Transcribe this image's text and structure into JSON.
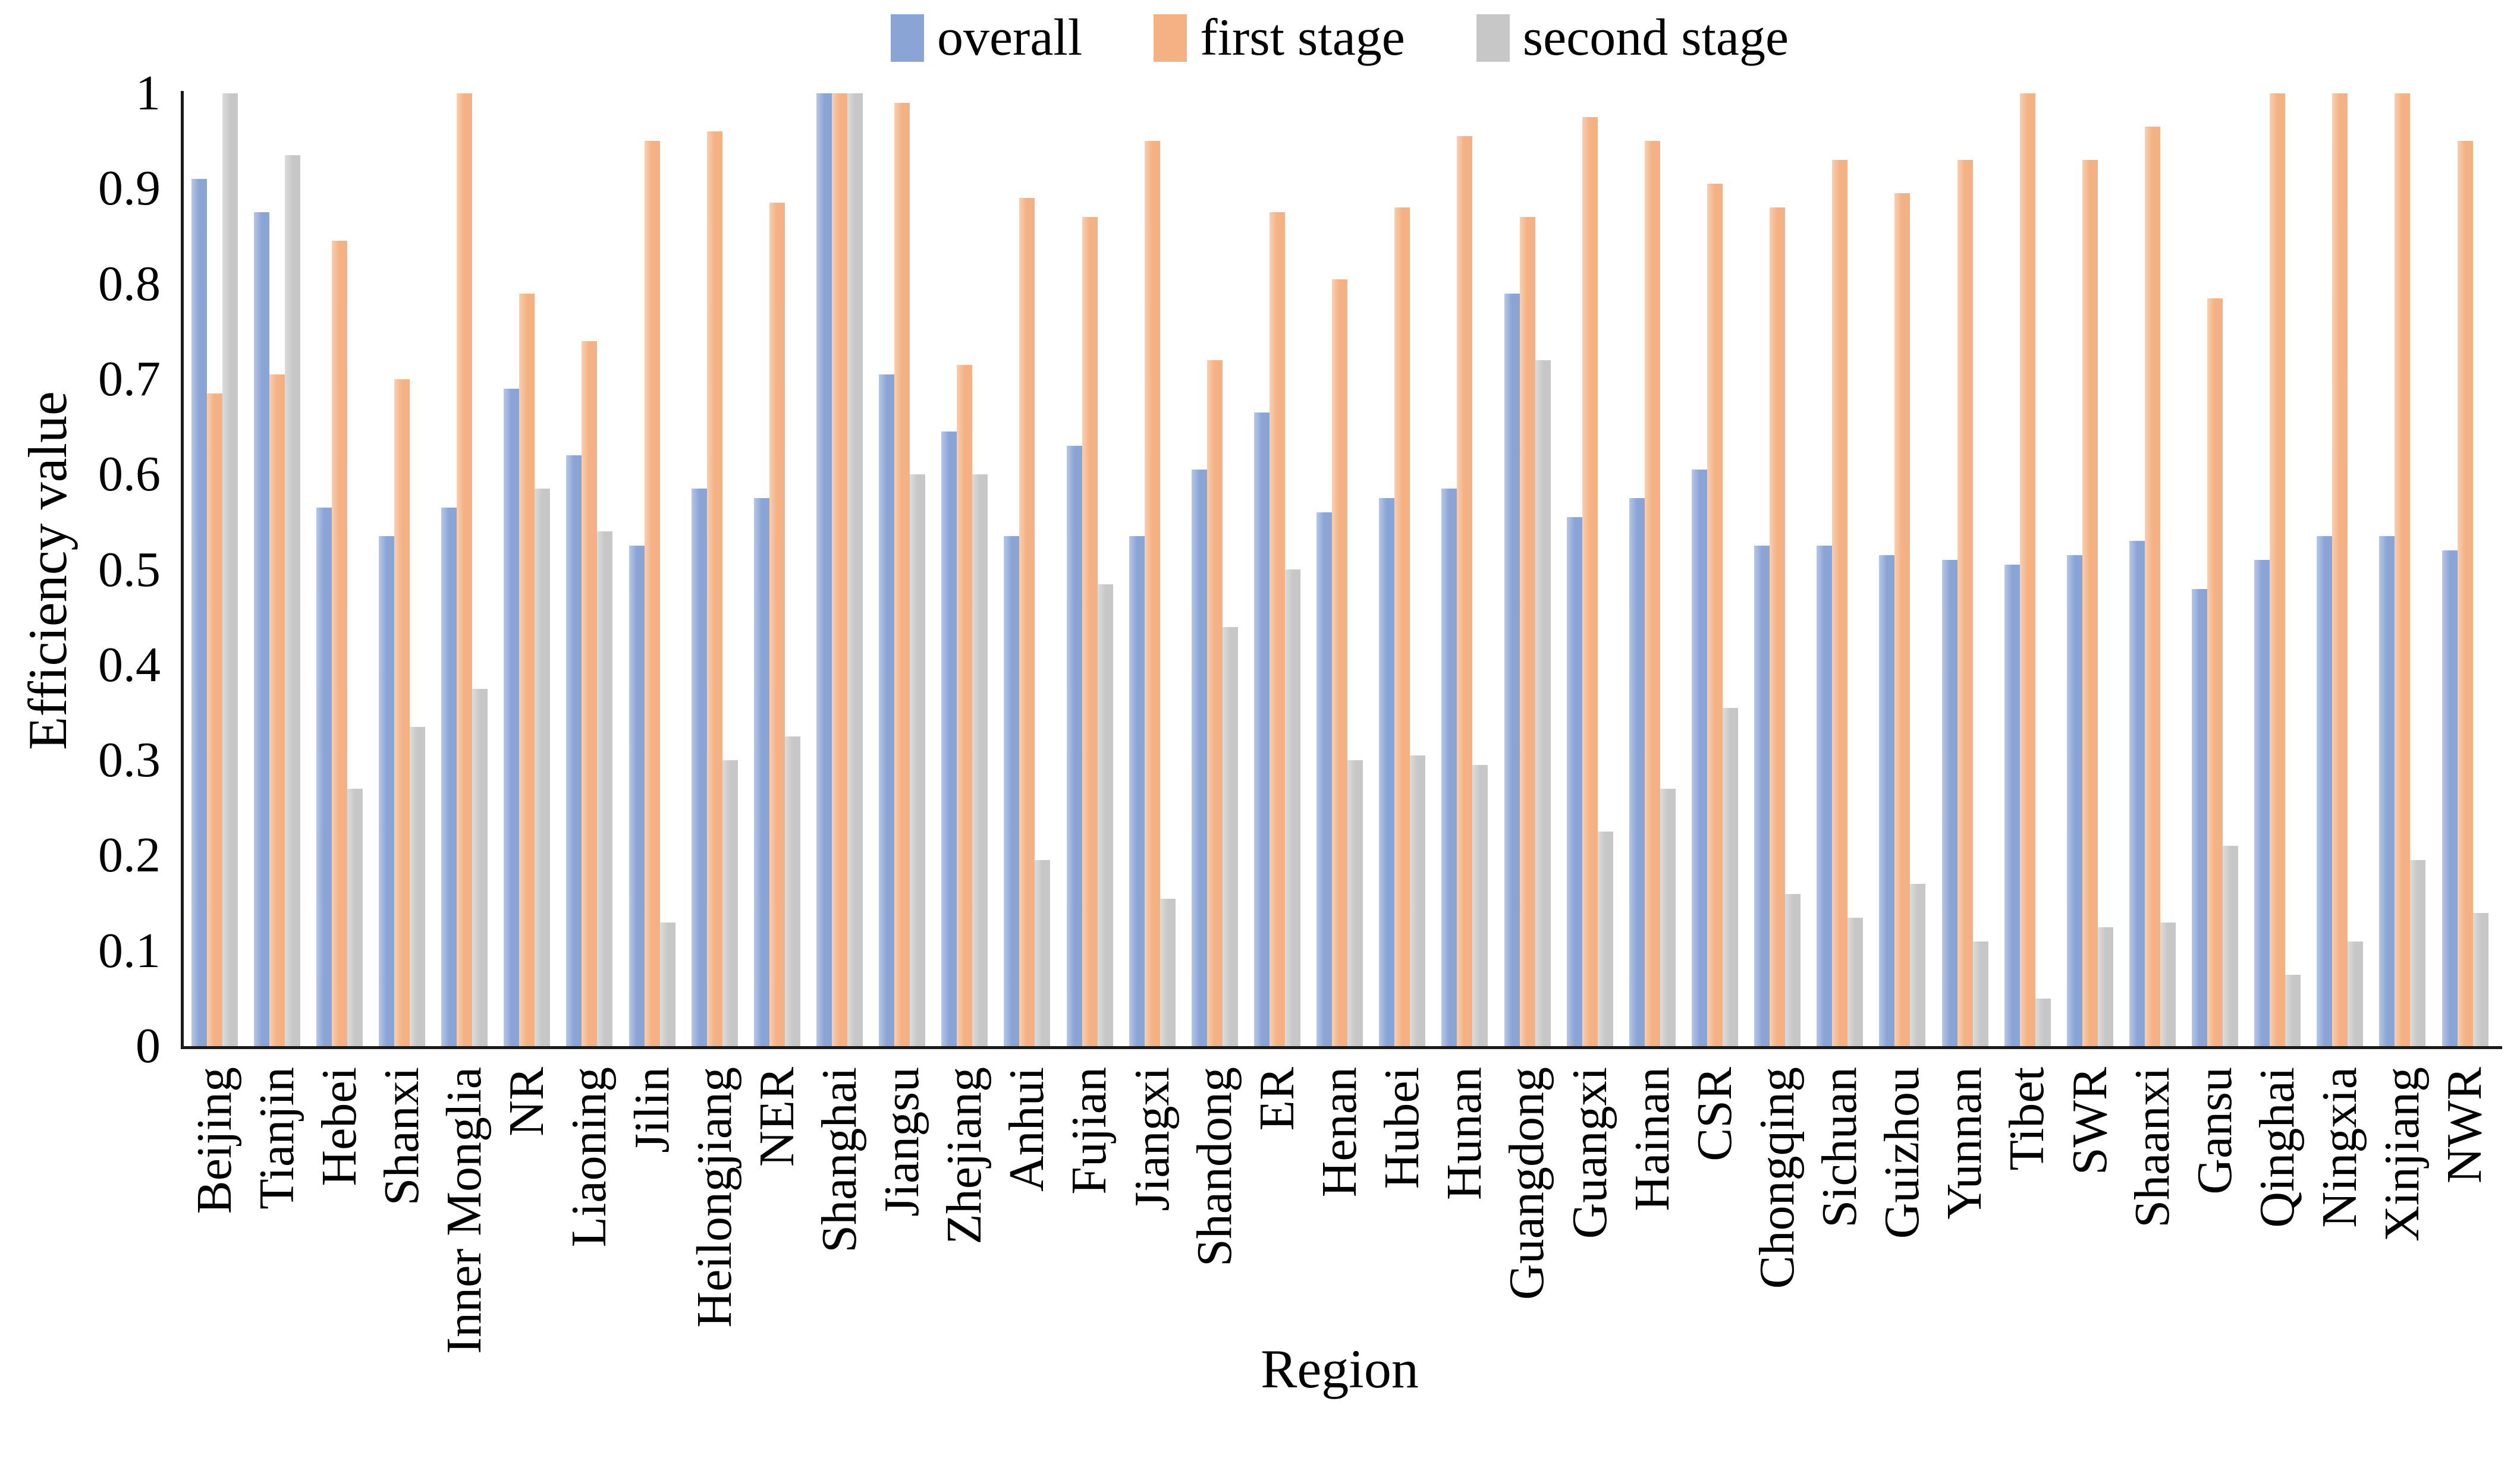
{
  "chart_data": {
    "type": "bar",
    "title": "",
    "xlabel": "Region",
    "ylabel": "Efficiency value",
    "ylim": [
      0,
      1
    ],
    "ytick_labels": [
      "0",
      "0.1",
      "0.2",
      "0.3",
      "0.4",
      "0.5",
      "0.6",
      "0.7",
      "0.8",
      "0.9",
      "1"
    ],
    "grid": false,
    "legend_position": "top-center",
    "axis_color": "#1a1a1a",
    "background_color": "#ffffff",
    "categories": [
      "Beijing",
      "Tianjin",
      "Hebei",
      "Shanxi",
      "Inner Monglia",
      "NR",
      "Liaoning",
      "Jilin",
      "Heilongjiang",
      "NER",
      "Shanghai",
      "Jiangsu",
      "Zhejiang",
      "Anhui",
      "Fujian",
      "Jiangxi",
      "Shandong",
      "ER",
      "Henan",
      "Hubei",
      "Hunan",
      "Guangdong",
      "Guangxi",
      "Hainan",
      "CSR",
      "Chongqing",
      "Sichuan",
      "Guizhou",
      "Yunnan",
      "Tibet",
      "SWR",
      "Shaanxi",
      "Gansu",
      "Qinghai",
      "Ningxia",
      "Xinjiang",
      "NWR"
    ],
    "series": [
      {
        "name": "overall",
        "color": "#8ba4d6",
        "values": [
          0.91,
          0.875,
          0.565,
          0.535,
          0.565,
          0.69,
          0.62,
          0.525,
          0.585,
          0.575,
          1.0,
          0.705,
          0.645,
          0.535,
          0.63,
          0.535,
          0.605,
          0.665,
          0.56,
          0.575,
          0.585,
          0.79,
          0.555,
          0.575,
          0.605,
          0.525,
          0.525,
          0.515,
          0.51,
          0.505,
          0.515,
          0.53,
          0.48,
          0.51,
          0.535,
          0.535,
          0.52
        ]
      },
      {
        "name": "first stage",
        "color": "#f4b183",
        "values": [
          0.685,
          0.705,
          0.845,
          0.7,
          1.0,
          0.79,
          0.74,
          0.95,
          0.96,
          0.885,
          1.0,
          0.99,
          0.715,
          0.89,
          0.87,
          0.95,
          0.72,
          0.875,
          0.805,
          0.88,
          0.955,
          0.87,
          0.975,
          0.95,
          0.905,
          0.88,
          0.93,
          0.895,
          0.93,
          1.0,
          0.93,
          0.965,
          0.785,
          1.0,
          1.0,
          1.0,
          0.95
        ]
      },
      {
        "name": "second stage",
        "color": "#c7c7c7",
        "values": [
          1.0,
          0.935,
          0.27,
          0.335,
          0.375,
          0.585,
          0.54,
          0.13,
          0.3,
          0.325,
          1.0,
          0.6,
          0.6,
          0.195,
          0.485,
          0.155,
          0.44,
          0.5,
          0.3,
          0.305,
          0.295,
          0.72,
          0.225,
          0.27,
          0.355,
          0.16,
          0.135,
          0.17,
          0.11,
          0.05,
          0.125,
          0.13,
          0.21,
          0.075,
          0.11,
          0.195,
          0.14
        ]
      }
    ]
  }
}
